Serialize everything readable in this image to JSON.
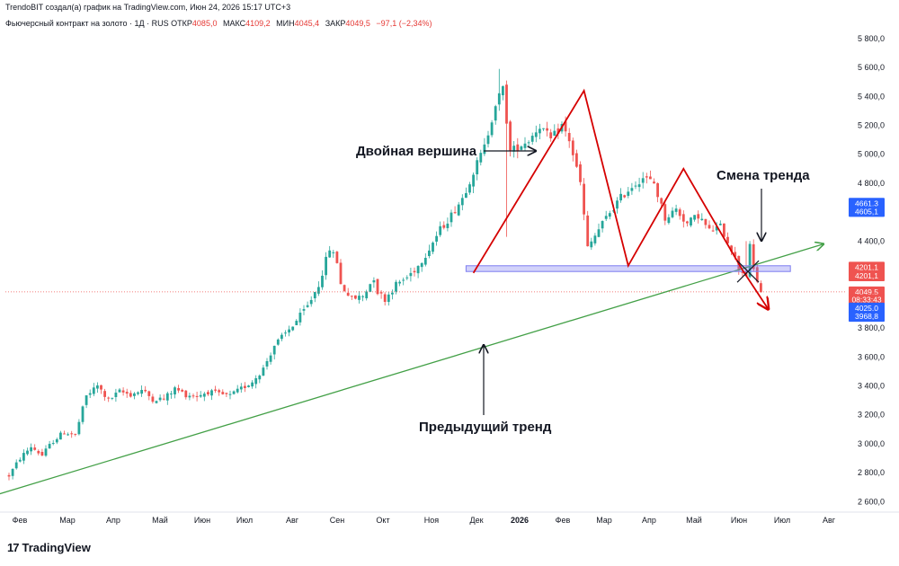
{
  "header": {
    "credit": "TrendoBIT создал(а) график на TradingView.com, Июн 24, 2026 15:17 UTC+3"
  },
  "ohlc": {
    "symbol": "Фьючерсный контракт на золото · 1Д · RUS",
    "open_label": "ОТКР",
    "open": "4085,0",
    "high_label": "МАКС",
    "high": "4109,2",
    "low_label": "МИН",
    "low": "4045,4",
    "close_label": "ЗАКР",
    "close": "4049,5",
    "change": "−97,1 (−2,34%)"
  },
  "footer": {
    "logo_text": "TradingView",
    "logo_icon": "tradingview-logo-icon"
  },
  "colors": {
    "up": "#26a69a",
    "down": "#ef5350",
    "pattern": "#d50000",
    "trend": "#43a047",
    "support": "#7e7ef0",
    "arrow": "#131722"
  },
  "chart_data": {
    "type": "candlestick",
    "title": "Фьючерсный контракт на золото",
    "x_ticks": [
      "Фев",
      "Мар",
      "Апр",
      "Май",
      "Июн",
      "Июл",
      "Авг",
      "Сен",
      "Окт",
      "Ноя",
      "Дек",
      "2026",
      "Фев",
      "Мар",
      "Апр",
      "Май",
      "Июн",
      "Июл",
      "Авг"
    ],
    "y_ticks": [
      "5 800,0",
      "5 600,0",
      "5 400,0",
      "5 200,0",
      "5 000,0",
      "4 800,0",
      "4 600,0",
      "4 400,0",
      "4 200,0",
      "4 000,0",
      "3 800,0",
      "3 600,0",
      "3 400,0",
      "3 200,0",
      "3 000,0",
      "2 800,0",
      "2 600,0"
    ],
    "y_tick_values": [
      5800,
      5600,
      5400,
      5200,
      5000,
      4800,
      4600,
      4400,
      4200,
      4000,
      3800,
      3600,
      3400,
      3200,
      3000,
      2800,
      2600
    ],
    "ylim": [
      2540,
      5880
    ],
    "price_anchors": [
      [
        0,
        2780
      ],
      [
        3,
        2900
      ],
      [
        6,
        2980
      ],
      [
        9,
        2920
      ],
      [
        12,
        3020
      ],
      [
        15,
        3080
      ],
      [
        18,
        3060
      ],
      [
        21,
        3330
      ],
      [
        24,
        3400
      ],
      [
        27,
        3300
      ],
      [
        30,
        3360
      ],
      [
        33,
        3340
      ],
      [
        36,
        3370
      ],
      [
        39,
        3310
      ],
      [
        42,
        3310
      ],
      [
        45,
        3380
      ],
      [
        48,
        3340
      ],
      [
        51,
        3330
      ],
      [
        54,
        3360
      ],
      [
        57,
        3340
      ],
      [
        60,
        3330
      ],
      [
        63,
        3380
      ],
      [
        66,
        3430
      ],
      [
        69,
        3520
      ],
      [
        72,
        3680
      ],
      [
        75,
        3760
      ],
      [
        78,
        3850
      ],
      [
        81,
        3950
      ],
      [
        84,
        4100
      ],
      [
        87,
        4350
      ],
      [
        89,
        4260
      ],
      [
        90,
        4100
      ],
      [
        93,
        4000
      ],
      [
        96,
        4020
      ],
      [
        99,
        4150
      ],
      [
        100,
        4050
      ],
      [
        102,
        4000
      ],
      [
        105,
        4100
      ],
      [
        108,
        4150
      ],
      [
        111,
        4230
      ],
      [
        114,
        4350
      ],
      [
        117,
        4480
      ],
      [
        120,
        4580
      ],
      [
        123,
        4700
      ],
      [
        126,
        4880
      ],
      [
        129,
        5050
      ],
      [
        132,
        5350
      ],
      [
        134,
        5450
      ],
      [
        136,
        5020
      ],
      [
        138,
        5050
      ],
      [
        141,
        5100
      ],
      [
        144,
        5200
      ],
      [
        147,
        5100
      ],
      [
        150,
        5200
      ],
      [
        152,
        5100
      ],
      [
        155,
        4800
      ],
      [
        157,
        4350
      ],
      [
        160,
        4480
      ],
      [
        163,
        4600
      ],
      [
        166,
        4700
      ],
      [
        169,
        4780
      ],
      [
        172,
        4840
      ],
      [
        175,
        4800
      ],
      [
        178,
        4560
      ],
      [
        181,
        4620
      ],
      [
        184,
        4520
      ],
      [
        187,
        4580
      ],
      [
        190,
        4470
      ],
      [
        193,
        4500
      ],
      [
        196,
        4350
      ],
      [
        198,
        4210
      ],
      [
        200,
        4170
      ],
      [
        201,
        4360
      ],
      [
        202,
        4200
      ],
      [
        204,
        4050
      ]
    ],
    "current_price": 4049.5,
    "price_tags": [
      {
        "label": "4661,3",
        "value": 4661.3,
        "color": "#2962ff"
      },
      {
        "label": "4605,1",
        "value": 4605.1,
        "color": "#2962ff"
      },
      {
        "label": "4201,1",
        "value": 4220,
        "color": "#ef5350"
      },
      {
        "label": "4201,1",
        "value": 4160,
        "color": "#ef5350"
      },
      {
        "label": "4049,5",
        "value": 4049.5,
        "color": "#ef5350"
      },
      {
        "label": "08:33:43",
        "value": 3995,
        "color": "#ef5350"
      },
      {
        "label": "4025,0",
        "value": 3938,
        "color": "#2962ff"
      },
      {
        "label": "3968,8",
        "value": 3880,
        "color": "#2962ff"
      }
    ],
    "annotations": [
      {
        "text": "Двойная вершина"
      },
      {
        "text": "Смена тренда"
      },
      {
        "text": "Предыдущий тренд"
      }
    ],
    "double_top_path": [
      [
        126,
        4180
      ],
      [
        156,
        5440
      ],
      [
        168,
        4230
      ],
      [
        183,
        4900
      ],
      [
        199,
        4200
      ],
      [
        206,
        3930
      ]
    ],
    "support_band": [
      4190,
      4230
    ],
    "trend_line": [
      [
        -3,
        2650
      ],
      [
        221,
        4380
      ]
    ]
  }
}
